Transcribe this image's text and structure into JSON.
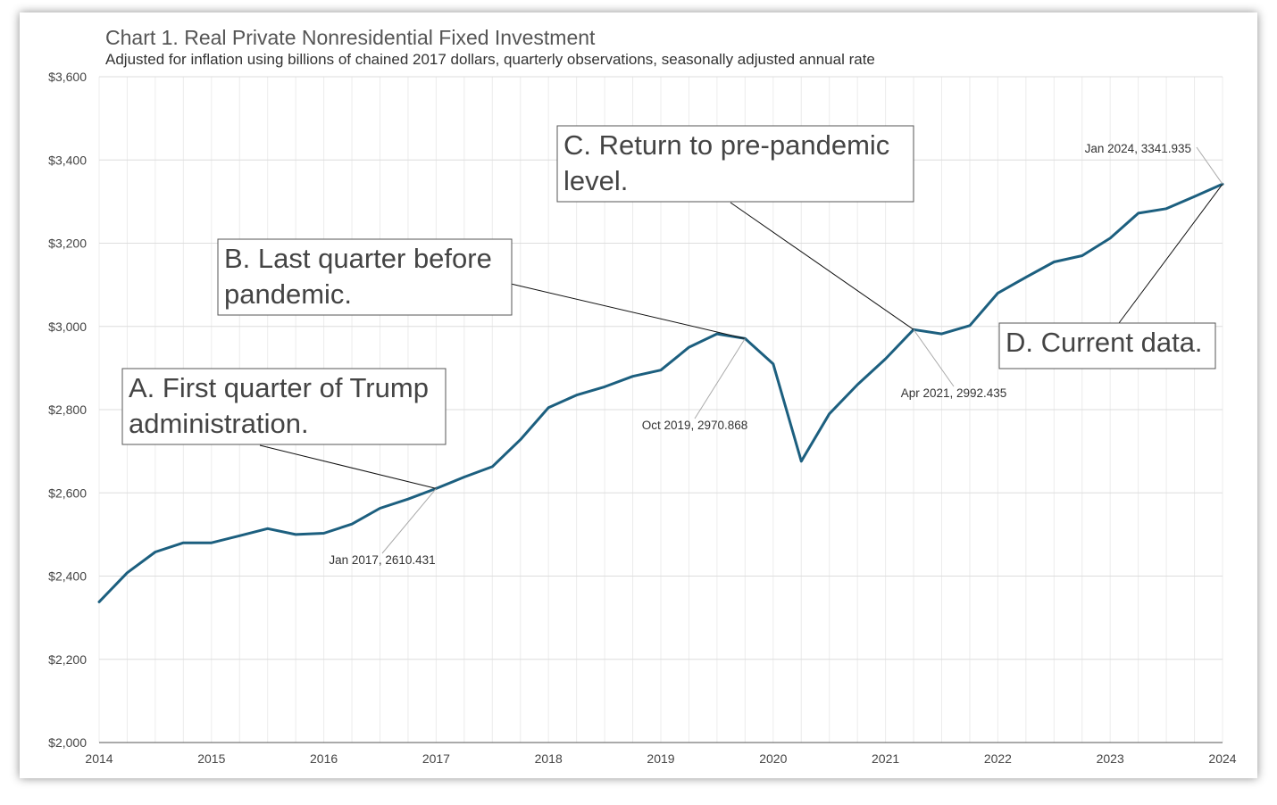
{
  "chart_data": {
    "type": "line",
    "title": "Chart 1. Real Private Nonresidential Fixed Investment",
    "subtitle": "Adjusted for inflation using billions of chained 2017 dollars, quarterly observations, seasonally adjusted annual rate",
    "xlabel": "",
    "ylabel": "",
    "ylim": [
      2000,
      3600
    ],
    "xlim": [
      2014,
      2024
    ],
    "grid": true,
    "line_color": "#1c5f7f",
    "y_ticks": [
      2000,
      2200,
      2400,
      2600,
      2800,
      3000,
      3200,
      3400,
      3600
    ],
    "y_tick_labels": [
      "$2,000",
      "$2,200",
      "$2,400",
      "$2,600",
      "$2,800",
      "$3,000",
      "$3,200",
      "$3,400",
      "$3,600"
    ],
    "x_ticks": [
      2014,
      2015,
      2016,
      2017,
      2018,
      2019,
      2020,
      2021,
      2022,
      2023,
      2024
    ],
    "x_tick_labels": [
      "2014",
      "2015",
      "2016",
      "2017",
      "2018",
      "2019",
      "2020",
      "2021",
      "2022",
      "2023",
      "2024"
    ],
    "series": [
      {
        "x": [
          2014.0,
          2014.25,
          2014.5,
          2014.75,
          2015.0,
          2015.25,
          2015.5,
          2015.75,
          2016.0,
          2016.25,
          2016.5,
          2016.75,
          2017.0,
          2017.25,
          2017.5,
          2017.75,
          2018.0,
          2018.25,
          2018.5,
          2018.75,
          2019.0,
          2019.25,
          2019.5,
          2019.75,
          2020.0,
          2020.25,
          2020.5,
          2020.75,
          2021.0,
          2021.25,
          2021.5,
          2021.75,
          2022.0,
          2022.25,
          2022.5,
          2022.75,
          2023.0,
          2023.25,
          2023.5,
          2023.75,
          2024.0
        ],
        "values": [
          2338,
          2408,
          2458,
          2480,
          2480,
          2497,
          2514,
          2500,
          2503,
          2525,
          2563,
          2585,
          2610.431,
          2638,
          2663,
          2728,
          2805,
          2835,
          2855,
          2880,
          2895,
          2950,
          2982,
          2970.868,
          2910,
          2676,
          2790,
          2860,
          2922,
          2992.435,
          2982,
          3002,
          3080,
          3118,
          3155,
          3170,
          3212,
          3272,
          3283,
          3312,
          3341.935
        ]
      }
    ],
    "callouts": [
      {
        "label": "Jan 2017, 2610.431",
        "x": 2017.0,
        "y": 2610.431
      },
      {
        "label": "Oct 2019, 2970.868",
        "x": 2019.75,
        "y": 2970.868
      },
      {
        "label": "Apr 2021, 2992.435",
        "x": 2021.25,
        "y": 2992.435
      },
      {
        "label": "Jan 2024, 3341.935",
        "x": 2024.0,
        "y": 3341.935
      }
    ],
    "annotations": [
      {
        "lines": [
          "A. First quarter of Trump",
          "administration."
        ],
        "x": 2017.0,
        "y": 2610.431
      },
      {
        "lines": [
          "B. Last quarter before",
          "pandemic."
        ],
        "x": 2019.75,
        "y": 2970.868
      },
      {
        "lines": [
          "C. Return to pre-pandemic",
          "level."
        ],
        "x": 2021.25,
        "y": 2992.435
      },
      {
        "lines": [
          "D. Current data."
        ],
        "x": 2024.0,
        "y": 3341.935
      }
    ]
  }
}
